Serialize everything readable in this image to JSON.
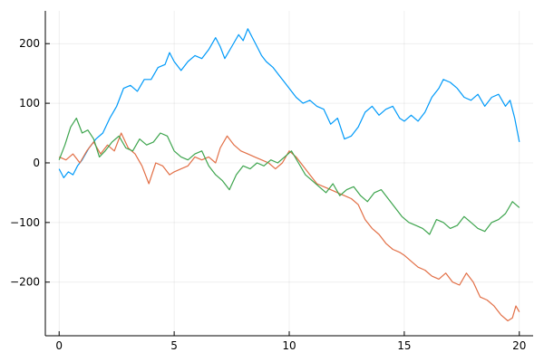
{
  "chart_data": {
    "type": "line",
    "title": "",
    "xlabel": "",
    "ylabel": "",
    "xlim": [
      -0.6,
      20.6
    ],
    "ylim": [
      -290,
      255
    ],
    "xticks": [
      0,
      5,
      10,
      15,
      20
    ],
    "yticks": [
      -200,
      -100,
      0,
      100,
      200
    ],
    "xtick_labels": [
      "0",
      "5",
      "10",
      "15",
      "20"
    ],
    "ytick_labels": [
      "−200",
      "−100",
      "0",
      "100",
      "200"
    ],
    "grid": true,
    "legend": "none",
    "series": [
      {
        "color": "#009af9",
        "x": [
          0,
          0.2,
          0.4,
          0.6,
          0.8,
          1.0,
          1.3,
          1.6,
          1.9,
          2.2,
          2.5,
          2.8,
          3.1,
          3.4,
          3.7,
          4.0,
          4.3,
          4.6,
          4.8,
          5.0,
          5.3,
          5.6,
          5.9,
          6.2,
          6.5,
          6.8,
          7.0,
          7.2,
          7.5,
          7.8,
          8.0,
          8.2,
          8.4,
          8.6,
          8.8,
          9.0,
          9.3,
          9.6,
          9.8,
          10.0,
          10.3,
          10.6,
          10.9,
          11.2,
          11.5,
          11.8,
          12.1,
          12.4,
          12.7,
          13.0,
          13.3,
          13.6,
          13.9,
          14.2,
          14.5,
          14.8,
          15.0,
          15.3,
          15.6,
          15.9,
          16.2,
          16.5,
          16.7,
          17.0,
          17.3,
          17.6,
          17.9,
          18.2,
          18.5,
          18.8,
          19.1,
          19.4,
          19.6,
          19.8,
          20.0
        ],
        "y": [
          -10,
          -25,
          -15,
          -20,
          -5,
          5,
          25,
          40,
          50,
          75,
          95,
          125,
          130,
          120,
          140,
          140,
          160,
          165,
          185,
          170,
          155,
          170,
          180,
          175,
          190,
          210,
          195,
          175,
          195,
          215,
          205,
          225,
          210,
          195,
          180,
          170,
          160,
          145,
          135,
          125,
          110,
          100,
          105,
          95,
          90,
          65,
          75,
          40,
          45,
          60,
          85,
          95,
          80,
          90,
          95,
          75,
          70,
          80,
          70,
          85,
          110,
          125,
          140,
          135,
          125,
          110,
          105,
          115,
          95,
          110,
          115,
          95,
          105,
          75,
          35
        ]
      },
      {
        "color": "#e26f46",
        "x": [
          0,
          0.3,
          0.6,
          0.9,
          1.2,
          1.5,
          1.8,
          2.1,
          2.4,
          2.7,
          3.0,
          3.3,
          3.6,
          3.9,
          4.2,
          4.5,
          4.8,
          5.0,
          5.3,
          5.6,
          5.9,
          6.2,
          6.5,
          6.8,
          7.0,
          7.3,
          7.6,
          7.9,
          8.2,
          8.5,
          8.8,
          9.1,
          9.4,
          9.7,
          10.0,
          10.3,
          10.6,
          10.9,
          11.2,
          11.5,
          11.8,
          12.1,
          12.4,
          12.7,
          13.0,
          13.3,
          13.6,
          13.9,
          14.2,
          14.5,
          14.8,
          15.0,
          15.3,
          15.6,
          15.9,
          16.2,
          16.5,
          16.8,
          17.1,
          17.4,
          17.7,
          18.0,
          18.3,
          18.6,
          18.9,
          19.2,
          19.5,
          19.7,
          19.85,
          20.0
        ],
        "y": [
          10,
          5,
          15,
          0,
          20,
          35,
          15,
          30,
          20,
          50,
          25,
          15,
          -5,
          -35,
          0,
          -5,
          -20,
          -15,
          -10,
          -5,
          10,
          5,
          10,
          0,
          25,
          45,
          30,
          20,
          15,
          10,
          5,
          0,
          -10,
          0,
          20,
          10,
          -5,
          -20,
          -35,
          -40,
          -45,
          -50,
          -55,
          -60,
          -70,
          -95,
          -110,
          -120,
          -135,
          -145,
          -150,
          -155,
          -165,
          -175,
          -180,
          -190,
          -195,
          -185,
          -200,
          -205,
          -185,
          -200,
          -225,
          -230,
          -240,
          -255,
          -265,
          -260,
          -240,
          -250
        ]
      },
      {
        "color": "#3da44d",
        "x": [
          0,
          0.25,
          0.5,
          0.75,
          1.0,
          1.25,
          1.5,
          1.75,
          2.0,
          2.3,
          2.6,
          2.9,
          3.2,
          3.5,
          3.8,
          4.1,
          4.4,
          4.7,
          5.0,
          5.3,
          5.6,
          5.9,
          6.2,
          6.5,
          6.8,
          7.1,
          7.4,
          7.7,
          8.0,
          8.3,
          8.6,
          8.9,
          9.2,
          9.5,
          9.8,
          10.1,
          10.4,
          10.7,
          11.0,
          11.3,
          11.6,
          11.9,
          12.2,
          12.5,
          12.8,
          13.1,
          13.4,
          13.7,
          14.0,
          14.3,
          14.6,
          14.9,
          15.2,
          15.5,
          15.8,
          16.1,
          16.4,
          16.7,
          17.0,
          17.3,
          17.6,
          17.9,
          18.2,
          18.5,
          18.8,
          19.1,
          19.4,
          19.7,
          20.0
        ],
        "y": [
          5,
          30,
          60,
          75,
          50,
          55,
          40,
          10,
          20,
          35,
          45,
          25,
          20,
          40,
          30,
          35,
          50,
          45,
          20,
          10,
          5,
          15,
          20,
          -5,
          -20,
          -30,
          -45,
          -20,
          -5,
          -10,
          0,
          -5,
          5,
          0,
          10,
          20,
          0,
          -20,
          -30,
          -40,
          -50,
          -35,
          -55,
          -45,
          -40,
          -55,
          -65,
          -50,
          -45,
          -60,
          -75,
          -90,
          -100,
          -105,
          -110,
          -120,
          -95,
          -100,
          -110,
          -105,
          -90,
          -100,
          -110,
          -115,
          -100,
          -95,
          -85,
          -65,
          -75
        ]
      }
    ]
  }
}
